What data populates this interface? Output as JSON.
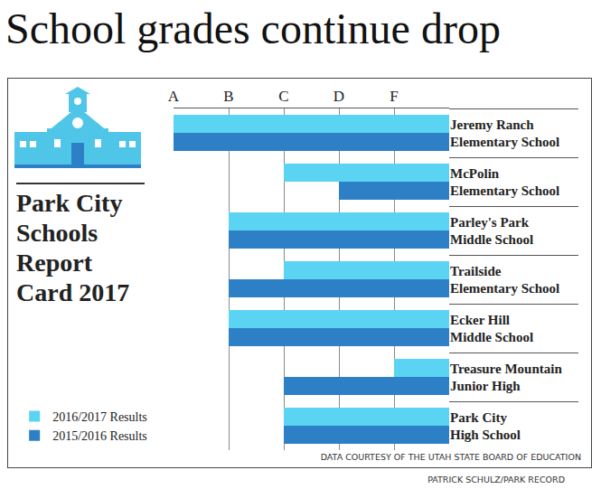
{
  "title": "School grades continue drop",
  "panel_title": "Park City Schools Report Card 2017",
  "source": "DATA COURTESY OF THE UTAH STATE BOARD OF EDUCATION",
  "credit": "PATRICK SCHULZ/PARK RECORD",
  "chart_data": {
    "type": "bar",
    "orientation": "horizontal",
    "categories": [
      "Jeremy Ranch Elementary School",
      "McPolin Elementary School",
      "Parley's Park Middle School",
      "Trailside Elementary School",
      "Ecker Hill Middle School",
      "Treasure Mountain Junior High",
      "Park City High School"
    ],
    "series": [
      {
        "name": "2016/2017 Results",
        "color": "#5bd3f2",
        "values": [
          5,
          3,
          4,
          3,
          4,
          1,
          3
        ]
      },
      {
        "name": "2015/2016 Results",
        "color": "#2e80c6",
        "values": [
          5,
          2,
          4,
          4,
          4,
          3,
          3
        ]
      }
    ],
    "xlim": [
      5,
      0
    ],
    "xticks": [
      {
        "value": 5,
        "label": "A"
      },
      {
        "value": 4,
        "label": "B"
      },
      {
        "value": 3,
        "label": "C"
      },
      {
        "value": 2,
        "label": "D"
      },
      {
        "value": 1,
        "label": "F"
      }
    ],
    "grid": true,
    "legend": "lower left"
  }
}
